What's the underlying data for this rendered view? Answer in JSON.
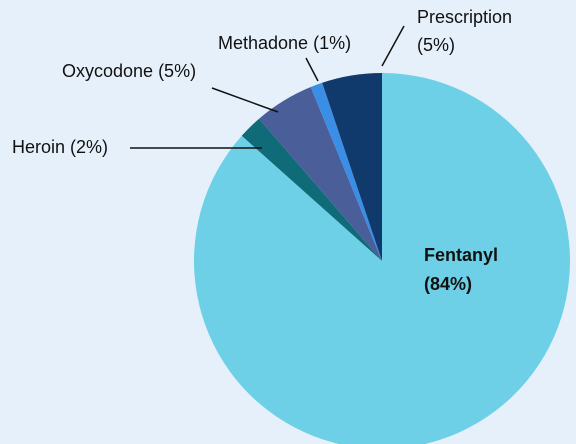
{
  "chart_data": {
    "type": "pie",
    "labels": [
      "Fentanyl",
      "Heroin",
      "Oxycodone",
      "Methadone",
      "Prescription"
    ],
    "values": [
      84,
      2,
      5,
      1,
      5
    ],
    "value_labels": [
      "(84%)",
      "(2%)",
      "(5%)",
      "(1%)",
      "(5%)"
    ],
    "colors": [
      "#6dd0e6",
      "#0e6b77",
      "#4a5e9a",
      "#3a8ee6",
      "#0f3a6b"
    ]
  }
}
